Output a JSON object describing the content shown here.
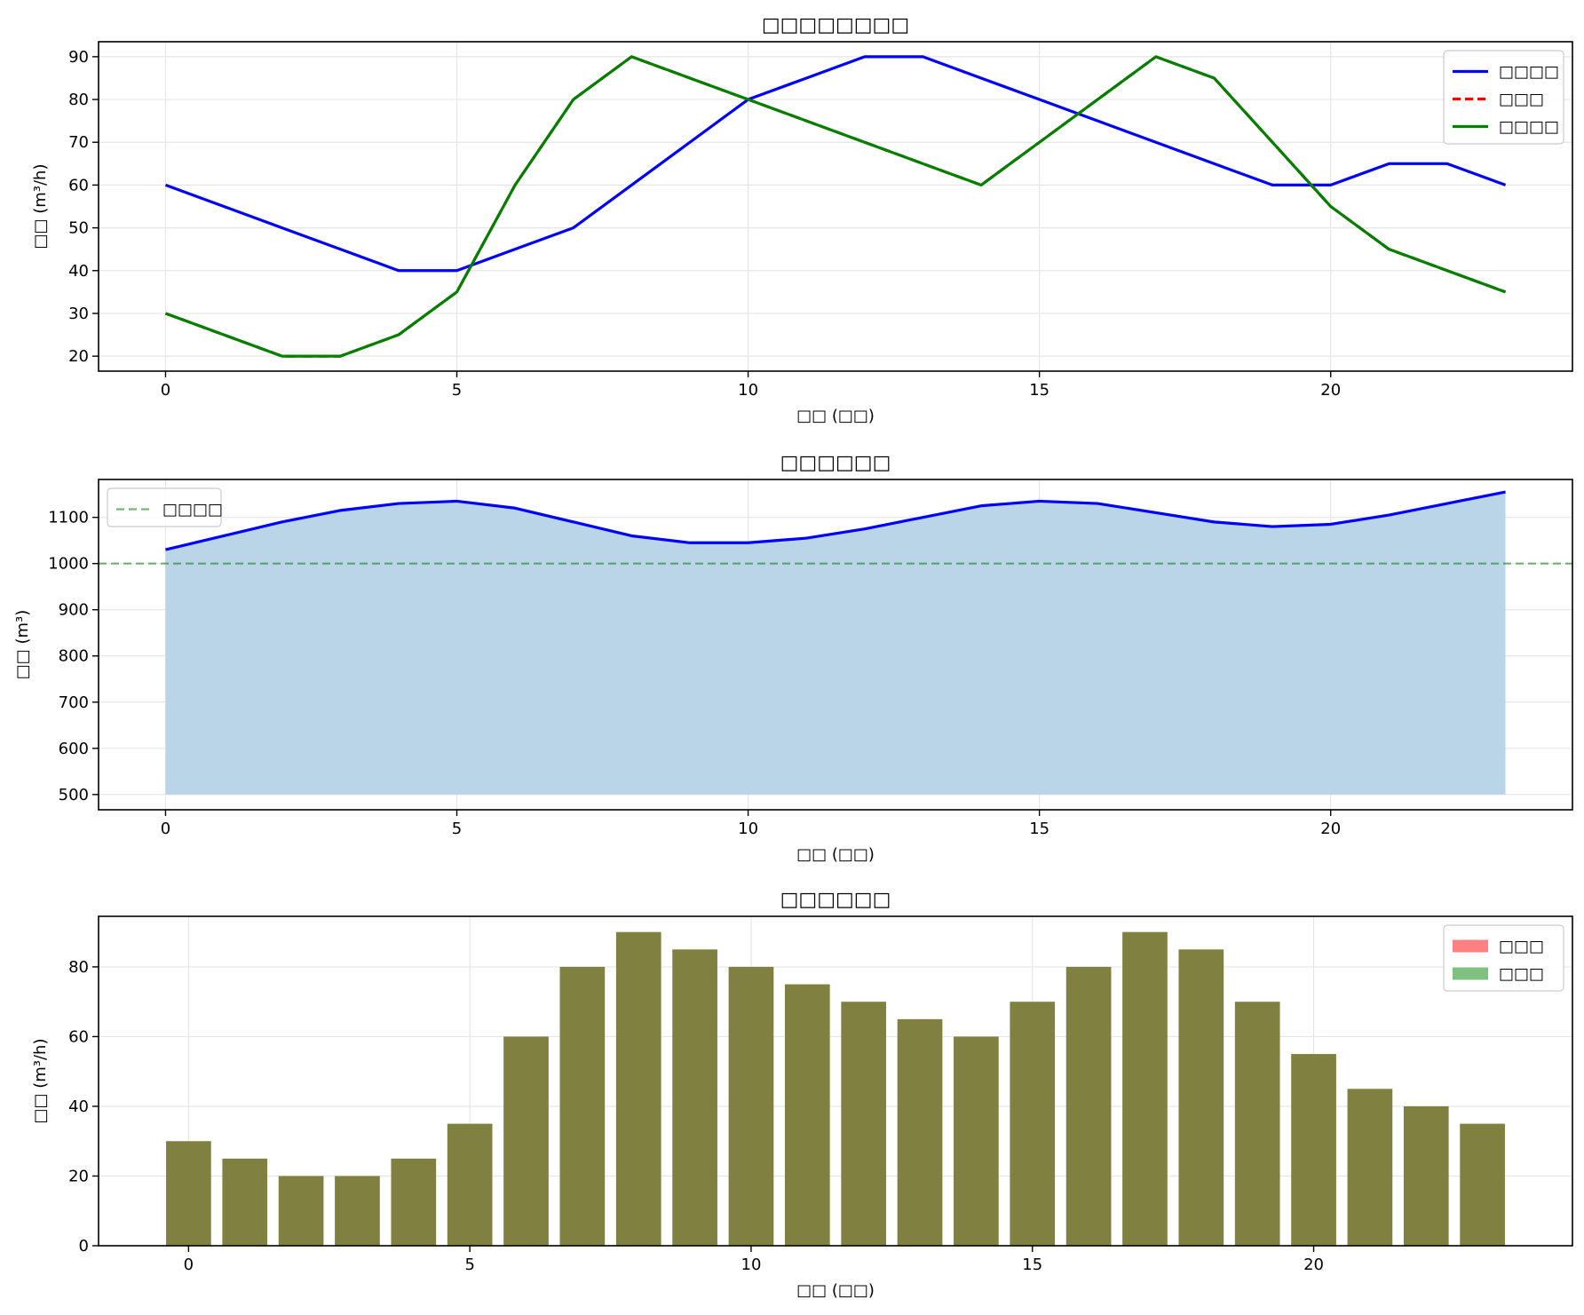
{
  "chart_data": [
    {
      "type": "line",
      "title": "□□□□□□□□",
      "xlabel": "□□ (□□)",
      "ylabel": "□□ (m³/h)",
      "xlim": [
        -1.15,
        24.15
      ],
      "ylim": [
        16.5,
        93.5
      ],
      "xticks": [
        0,
        5,
        10,
        15,
        20
      ],
      "yticks": [
        20,
        30,
        40,
        50,
        60,
        70,
        80,
        90
      ],
      "grid": true,
      "legend": "top-right",
      "x": [
        0,
        1,
        2,
        3,
        4,
        5,
        6,
        7,
        8,
        9,
        10,
        11,
        12,
        13,
        14,
        15,
        16,
        17,
        18,
        19,
        20,
        21,
        22,
        23
      ],
      "series": [
        {
          "name": "□□□□",
          "color": "#0000ff",
          "dash": "solid",
          "values": [
            60,
            55,
            50,
            45,
            40,
            40,
            45,
            50,
            60,
            70,
            80,
            85,
            90,
            90,
            85,
            80,
            75,
            70,
            65,
            60,
            60,
            65,
            65,
            60
          ]
        },
        {
          "name": "□□□",
          "color": "#ff0000",
          "dash": "dashed",
          "values": [
            30,
            25,
            20,
            20,
            25,
            35,
            60,
            80,
            90,
            85,
            80,
            75,
            70,
            65,
            60,
            70,
            80,
            90,
            85,
            70,
            55,
            45,
            40,
            35
          ]
        },
        {
          "name": "□□□□",
          "color": "#008000",
          "dash": "solid",
          "values": [
            30,
            25,
            20,
            20,
            25,
            35,
            60,
            80,
            90,
            85,
            80,
            75,
            70,
            65,
            60,
            70,
            80,
            90,
            85,
            70,
            55,
            45,
            40,
            35
          ]
        }
      ]
    },
    {
      "type": "area",
      "title": "□□□□□□",
      "xlabel": "□□ (□□)",
      "ylabel": "□□ (m³)",
      "xlim": [
        -1.15,
        24.15
      ],
      "ylim": [
        467,
        1182
      ],
      "xticks": [
        0,
        5,
        10,
        15,
        20
      ],
      "yticks": [
        500,
        600,
        700,
        800,
        900,
        1000,
        1100
      ],
      "grid": true,
      "legend": "top-left",
      "fill_base": 500,
      "fill_color": "#bad4e8",
      "x": [
        0,
        1,
        2,
        3,
        4,
        5,
        6,
        7,
        8,
        9,
        10,
        11,
        12,
        13,
        14,
        15,
        16,
        17,
        18,
        19,
        20,
        21,
        22,
        23
      ],
      "series": [
        {
          "name": "",
          "color": "#0000ff",
          "values": [
            1030,
            1060,
            1090,
            1115,
            1130,
            1135,
            1120,
            1090,
            1060,
            1045,
            1045,
            1055,
            1075,
            1100,
            1125,
            1135,
            1130,
            1110,
            1090,
            1080,
            1085,
            1105,
            1130,
            1155
          ]
        }
      ],
      "reference_line": {
        "name": "□□□□",
        "value": 1000,
        "color": "#008000",
        "dash": "dashed"
      }
    },
    {
      "type": "bar",
      "title": "□□□□□□",
      "xlabel": "□□ (□□)",
      "ylabel": "□□ (m³/h)",
      "xlim": [
        -1.6,
        24.6
      ],
      "ylim": [
        0,
        94.5
      ],
      "xticks": [
        0,
        5,
        10,
        15,
        20
      ],
      "yticks": [
        0,
        20,
        40,
        60,
        80
      ],
      "grid": true,
      "legend": "top-right",
      "bar_width": 0.8,
      "overlap_color": "#808040",
      "categories": [
        0,
        1,
        2,
        3,
        4,
        5,
        6,
        7,
        8,
        9,
        10,
        11,
        12,
        13,
        14,
        15,
        16,
        17,
        18,
        19,
        20,
        21,
        22,
        23
      ],
      "series": [
        {
          "name": "□□□",
          "color": "#ff8080",
          "values": [
            30,
            25,
            20,
            20,
            25,
            35,
            60,
            80,
            90,
            85,
            80,
            75,
            70,
            65,
            60,
            70,
            80,
            90,
            85,
            70,
            55,
            45,
            40,
            35
          ]
        },
        {
          "name": "□□□",
          "color": "#80c080",
          "values": [
            30,
            25,
            20,
            20,
            25,
            35,
            60,
            80,
            90,
            85,
            80,
            75,
            70,
            65,
            60,
            70,
            80,
            90,
            85,
            70,
            55,
            45,
            40,
            35
          ]
        }
      ]
    }
  ]
}
